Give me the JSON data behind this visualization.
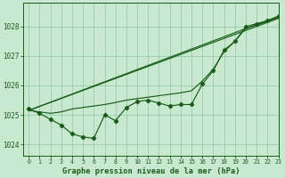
{
  "title": "Graphe pression niveau de la mer (hPa)",
  "bg_color": "#c8e8d0",
  "grid_color": "#99ccaa",
  "line_color": "#1a5c1a",
  "xlim": [
    -0.5,
    23
  ],
  "ylim": [
    1023.6,
    1028.8
  ],
  "yticks": [
    1024,
    1025,
    1026,
    1027,
    1028
  ],
  "xticks": [
    0,
    1,
    2,
    3,
    4,
    5,
    6,
    7,
    8,
    9,
    10,
    11,
    12,
    13,
    14,
    15,
    16,
    17,
    18,
    19,
    20,
    21,
    22,
    23
  ],
  "series_marker": {
    "x": [
      0,
      1,
      2,
      3,
      4,
      5,
      6,
      7,
      8,
      9,
      10,
      11,
      12,
      13,
      14,
      15,
      16,
      17,
      18,
      19,
      20,
      21,
      22,
      23
    ],
    "y": [
      1025.2,
      1025.05,
      1024.85,
      1024.65,
      1024.35,
      1024.25,
      1024.2,
      1025.0,
      1024.8,
      1025.25,
      1025.45,
      1025.5,
      1025.4,
      1025.3,
      1025.35,
      1025.35,
      1026.05,
      1026.5,
      1027.2,
      1027.5,
      1028.0,
      1028.1,
      1028.2,
      1028.35
    ]
  },
  "series_straight1": {
    "x": [
      0,
      23
    ],
    "y": [
      1025.15,
      1028.35
    ]
  },
  "series_straight2": {
    "x": [
      0,
      23
    ],
    "y": [
      1025.15,
      1028.28
    ]
  },
  "series_smooth": {
    "x": [
      0,
      1,
      2,
      3,
      4,
      5,
      6,
      7,
      8,
      9,
      10,
      11,
      12,
      13,
      14,
      15,
      16,
      17,
      18,
      19,
      20,
      21,
      22,
      23
    ],
    "y": [
      1025.15,
      1025.1,
      1025.05,
      1025.1,
      1025.2,
      1025.25,
      1025.3,
      1025.35,
      1025.42,
      1025.5,
      1025.55,
      1025.6,
      1025.65,
      1025.7,
      1025.75,
      1025.82,
      1026.15,
      1026.55,
      1027.15,
      1027.5,
      1027.95,
      1028.05,
      1028.18,
      1028.3
    ]
  }
}
